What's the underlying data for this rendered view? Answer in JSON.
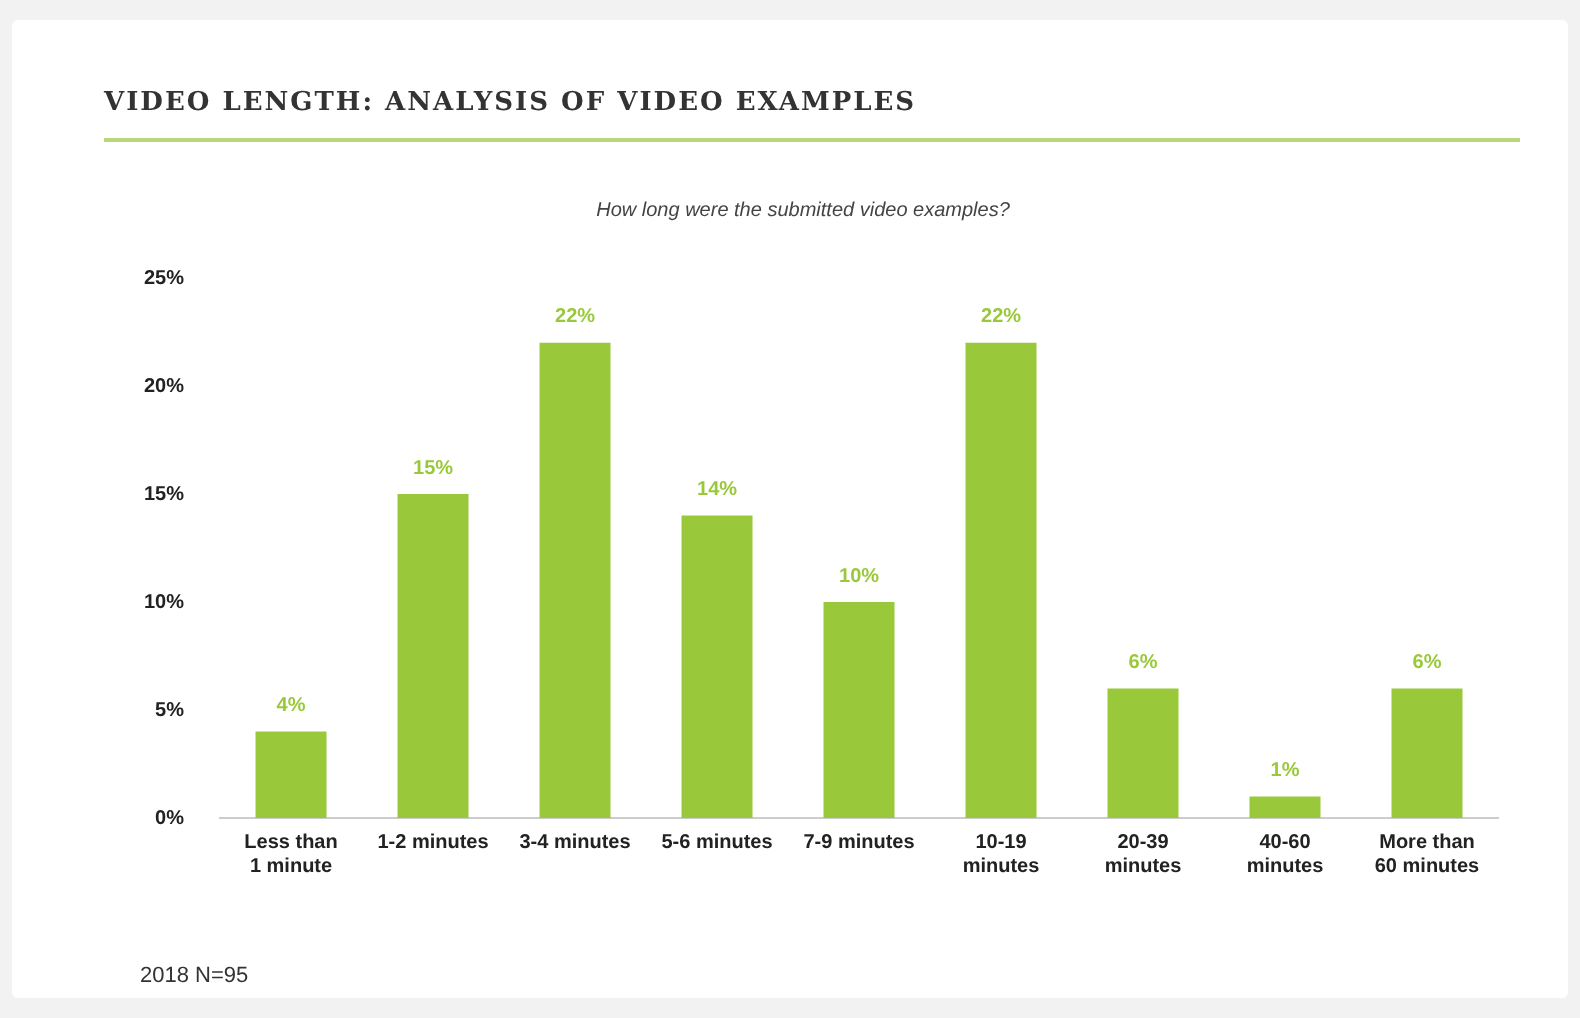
{
  "chart_data": {
    "type": "bar",
    "title": "VIDEO LENGTH: ANALYSIS OF VIDEO EXAMPLES",
    "subtitle": "How long were the submitted video examples?",
    "categories": [
      "Less than 1 minute",
      "1-2 minutes",
      "3-4 minutes",
      "5-6 minutes",
      "7-9 minutes",
      "10-19 minutes",
      "20-39 minutes",
      "40-60 minutes",
      "More than 60 minutes"
    ],
    "values": [
      4,
      15,
      22,
      14,
      10,
      22,
      6,
      1,
      6
    ],
    "value_labels": [
      "4%",
      "15%",
      "22%",
      "14%",
      "10%",
      "22%",
      "6%",
      "1%",
      "6%"
    ],
    "color": "#99c93a",
    "ylim": [
      0,
      25
    ],
    "yticks": [
      {
        "value": 0,
        "label": "0%"
      },
      {
        "value": 5,
        "label": "5%"
      },
      {
        "value": 10,
        "label": "10%"
      },
      {
        "value": 15,
        "label": "15%"
      },
      {
        "value": 20,
        "label": "20%"
      },
      {
        "value": 25,
        "label": "25%"
      }
    ],
    "grid": false,
    "annotations": [
      "2018 N=95"
    ]
  }
}
